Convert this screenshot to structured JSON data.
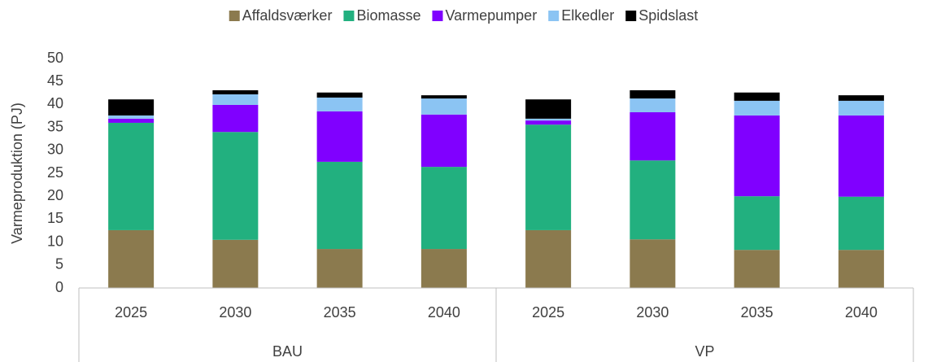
{
  "chart_data": {
    "type": "stacked_bar",
    "y_label": "Varmeproduktion (PJ)",
    "categories": [
      "2025",
      "2030",
      "2035",
      "2040",
      "2025",
      "2030",
      "2035",
      "2040"
    ],
    "groups": [
      "BAU",
      "VP"
    ],
    "series": [
      {
        "name": "Affaldsværker",
        "color": "#8b7a4e",
        "values": [
          12.6,
          10.5,
          8.5,
          8.5,
          12.6,
          10.6,
          8.3,
          8.3
        ]
      },
      {
        "name": "Biomasse",
        "color": "#22b07f",
        "values": [
          23.4,
          23.5,
          19,
          17.9,
          23,
          17.2,
          11.7,
          11.6
        ]
      },
      {
        "name": "Varmepumper",
        "color": "#8000ff",
        "values": [
          0.9,
          5.9,
          11,
          11.4,
          0.9,
          10.5,
          17.6,
          17.7
        ]
      },
      {
        "name": "Elkedler",
        "color": "#8bc4f3",
        "values": [
          0.7,
          2.3,
          3,
          3.5,
          0.4,
          3,
          3.2,
          3.2
        ]
      },
      {
        "name": "Spidslast",
        "color": "#000000",
        "values": [
          3.5,
          0.9,
          1.1,
          0.7,
          4.2,
          1.8,
          1.8,
          1.2
        ]
      }
    ],
    "ylim": [
      0,
      50
    ],
    "yticks": [
      0,
      5,
      10,
      15,
      20,
      25,
      30,
      35,
      40,
      45,
      50
    ],
    "legend": "top"
  }
}
